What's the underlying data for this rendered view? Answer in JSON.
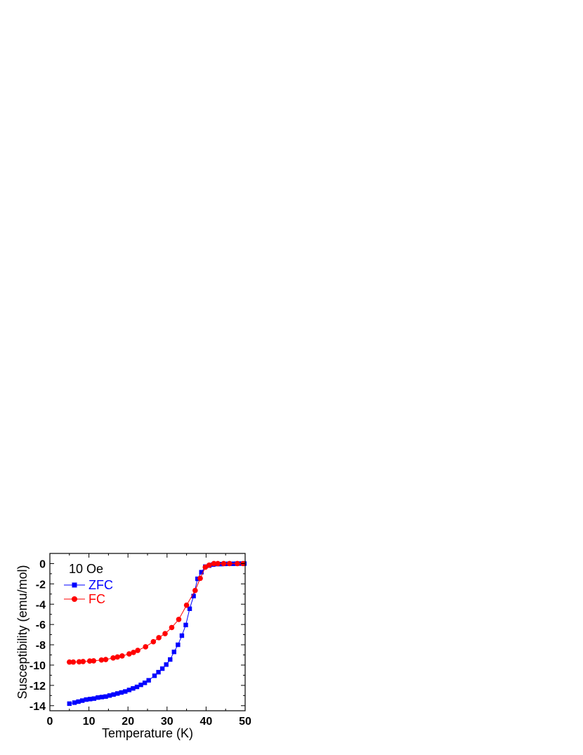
{
  "chart_data": {
    "type": "scatter",
    "xlabel": "Temperature (K)",
    "ylabel": "Susceptibility (emu/mol)",
    "xlim": [
      0,
      50
    ],
    "ylim": [
      -14.5,
      1
    ],
    "xticks": [
      0,
      10,
      20,
      30,
      40,
      50
    ],
    "yticks": [
      0,
      -2,
      -4,
      -6,
      -8,
      -10,
      -12,
      -14
    ],
    "grid": false,
    "legend_position": "top-left",
    "annotation": "10 Oe",
    "series": [
      {
        "name": "ZFC",
        "color": "#0000ff",
        "marker": "square",
        "x": [
          5,
          6.3,
          7.3,
          8.3,
          9.3,
          10.3,
          11.3,
          12.3,
          13.3,
          14.3,
          15.3,
          16.3,
          17.3,
          18.3,
          19.3,
          20.3,
          21.3,
          22.3,
          23.3,
          24.3,
          25.3,
          26.8,
          27.8,
          28.8,
          29.8,
          30.8,
          31.8,
          32.8,
          33.8,
          34.8,
          35.8,
          36.8,
          37.8,
          38.8,
          39.8,
          40.8,
          41.8,
          42.8,
          43.8,
          44.8,
          45.8,
          46.8,
          47.8,
          48.8,
          49.8
        ],
        "y": [
          -13.8,
          -13.7,
          -13.6,
          -13.5,
          -13.4,
          -13.35,
          -13.3,
          -13.2,
          -13.15,
          -13.1,
          -13.0,
          -12.9,
          -12.8,
          -12.7,
          -12.6,
          -12.45,
          -12.3,
          -12.15,
          -11.95,
          -11.75,
          -11.5,
          -11.05,
          -10.7,
          -10.35,
          -9.95,
          -9.45,
          -8.7,
          -8.0,
          -7.1,
          -6.05,
          -4.45,
          -3.2,
          -1.5,
          -0.85,
          -0.3,
          -0.2,
          -0.1,
          -0.05,
          -0.05,
          -0.03,
          -0.02,
          -0.02,
          -0.01,
          0,
          0
        ]
      },
      {
        "name": "FC",
        "color": "#ff0000",
        "marker": "circle",
        "x": [
          5,
          6,
          7.5,
          8.5,
          10.2,
          11.2,
          13.2,
          14.3,
          16.2,
          17.3,
          18.5,
          20.3,
          21.4,
          22.5,
          24.5,
          26.5,
          27.9,
          29.5,
          31.2,
          33,
          35,
          37.2,
          38.5,
          39.8,
          40.8,
          42,
          43,
          44.5,
          46,
          48,
          49.5
        ],
        "y": [
          -9.7,
          -9.7,
          -9.68,
          -9.65,
          -9.6,
          -9.58,
          -9.5,
          -9.45,
          -9.3,
          -9.2,
          -9.1,
          -8.9,
          -8.75,
          -8.55,
          -8.2,
          -7.7,
          -7.3,
          -6.9,
          -6.3,
          -5.5,
          -4.1,
          -2.65,
          -1.45,
          -0.35,
          -0.15,
          0,
          0,
          0,
          0,
          0,
          0
        ]
      }
    ]
  }
}
